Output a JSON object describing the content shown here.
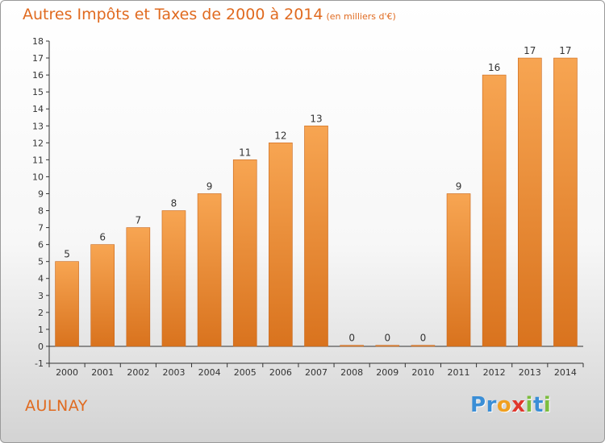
{
  "title": {
    "main": "Autres Impôts et Taxes de 2000 à 2014",
    "unit": "(en milliers d'€)"
  },
  "commune": "AULNAY",
  "brand": {
    "letters": [
      {
        "ch": "P",
        "color": "#3a8ed6"
      },
      {
        "ch": "r",
        "color": "#3a8ed6"
      },
      {
        "ch": "o",
        "color": "#f0a020"
      },
      {
        "ch": "x",
        "color": "#e0362c"
      },
      {
        "ch": "i",
        "color": "#7cbd3e"
      },
      {
        "ch": "t",
        "color": "#3a8ed6"
      },
      {
        "ch": "i",
        "color": "#7cbd3e"
      }
    ]
  },
  "colors": {
    "bar_top": "#f7a552",
    "bar_bottom": "#d9731e",
    "bar_edge": "#c9661a",
    "axis": "#333333",
    "grid": "#dddddd",
    "title": "#e06a1f"
  },
  "chart_data": {
    "type": "bar",
    "categories": [
      "2000",
      "2001",
      "2002",
      "2003",
      "2004",
      "2005",
      "2006",
      "2007",
      "2008",
      "2009",
      "2010",
      "2011",
      "2012",
      "2013",
      "2014"
    ],
    "values": [
      5,
      6,
      7,
      8,
      9,
      11,
      12,
      13,
      0,
      0,
      0,
      9,
      16,
      17,
      17
    ],
    "value_labels": [
      "5",
      "6",
      "7",
      "8",
      "9",
      "11",
      "12",
      "13",
      "0",
      "0",
      "0",
      "9",
      "16",
      "17",
      "17"
    ],
    "y_ticks": [
      "-1",
      "0",
      "1",
      "2",
      "3",
      "4",
      "5",
      "6",
      "7",
      "8",
      "9",
      "10",
      "11",
      "12",
      "13",
      "14",
      "15",
      "16",
      "17",
      "18"
    ],
    "ylim": [
      -1,
      18
    ],
    "title": "Autres Impôts et Taxes de 2000 à 2014",
    "xlabel": "",
    "ylabel": "",
    "grid": false,
    "legend": "none"
  }
}
